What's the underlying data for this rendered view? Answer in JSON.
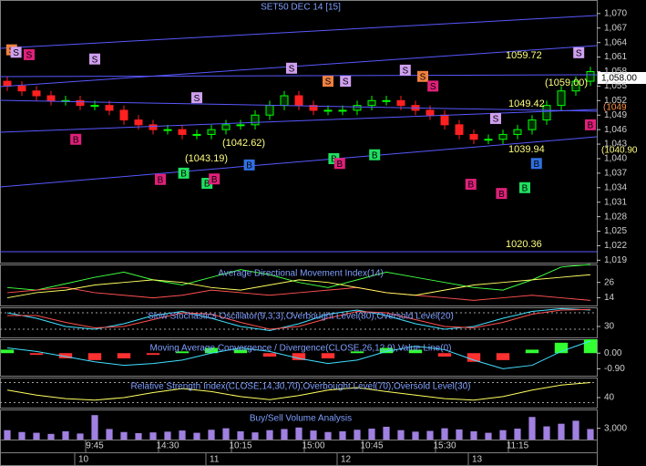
{
  "chart_data": [
    {
      "type": "candlestick",
      "title": "SET50 DEC 14 [15]",
      "categories": [
        null,
        null,
        null,
        null,
        null,
        null,
        "9:45",
        null,
        null,
        null,
        null,
        "14:30",
        null,
        null,
        null,
        null,
        "10:15",
        null,
        null,
        null,
        null,
        "15:00",
        null,
        null,
        null,
        "10:45",
        null,
        null,
        null,
        null,
        "15:30",
        null,
        null,
        null,
        null,
        "11:15",
        null,
        null,
        null,
        null,
        null
      ],
      "dates": [
        null,
        null,
        null,
        null,
        null,
        "10",
        null,
        null,
        null,
        null,
        null,
        null,
        null,
        null,
        "11",
        null,
        null,
        null,
        null,
        null,
        null,
        null,
        null,
        "12",
        null,
        null,
        null,
        null,
        null,
        null,
        null,
        null,
        "13",
        null,
        null,
        null,
        null,
        null,
        null,
        null,
        null
      ],
      "open": [
        1056,
        1055,
        1054,
        1053,
        1052,
        1052,
        1051,
        1051,
        1050,
        1048,
        1047,
        1046,
        1046,
        1045,
        1045,
        1046,
        1047,
        1047,
        1049,
        1051,
        1053,
        1051,
        1050,
        1050,
        1050,
        1051,
        1052,
        1052,
        1051,
        1050,
        1049,
        1047,
        1045,
        1044,
        1044,
        1045,
        1046,
        1048,
        1051,
        1054,
        1056
      ],
      "high": [
        1057,
        1056,
        1055,
        1054,
        1053,
        1053,
        1052,
        1052,
        1051,
        1049,
        1048,
        1047,
        1047,
        1046,
        1047,
        1048,
        1048,
        1050,
        1052,
        1054,
        1054,
        1052,
        1051,
        1051,
        1052,
        1053,
        1053,
        1053,
        1052,
        1051,
        1050,
        1048,
        1046,
        1045,
        1046,
        1047,
        1049,
        1052,
        1055,
        1057,
        1059
      ],
      "low": [
        1054,
        1053,
        1052,
        1051,
        1051,
        1050,
        1050,
        1049,
        1047,
        1046,
        1045,
        1045,
        1044,
        1044,
        1044,
        1045,
        1046,
        1046,
        1048,
        1050,
        1050,
        1049,
        1049,
        1049,
        1049,
        1050,
        1051,
        1050,
        1049,
        1048,
        1046,
        1044,
        1043,
        1043,
        1043,
        1044,
        1045,
        1047,
        1050,
        1053,
        1055
      ],
      "close": [
        1055,
        1054,
        1053,
        1052,
        1052,
        1051,
        1051,
        1050,
        1048,
        1047,
        1046,
        1046,
        1045,
        1045,
        1046,
        1047,
        1047,
        1049,
        1051,
        1053,
        1051,
        1050,
        1050,
        1050,
        1051,
        1052,
        1052,
        1051,
        1050,
        1049,
        1047,
        1045,
        1044,
        1044,
        1045,
        1046,
        1048,
        1051,
        1054,
        1056,
        1058
      ],
      "up_color": "#00ff00",
      "down_color": "#ff2020",
      "ylim": [
        1018.5,
        1072.8
      ],
      "yticks": [
        {
          "value": 1070,
          "label": "1,070"
        },
        {
          "value": 1067,
          "label": "1,067"
        },
        {
          "value": 1064,
          "label": "1,064"
        },
        {
          "value": 1061,
          "label": "1,061"
        },
        {
          "value": 1058,
          "label": "1,058"
        },
        {
          "value": 1055,
          "label": "1,055"
        },
        {
          "value": 1052,
          "label": "1,052"
        },
        {
          "value": 1049,
          "label": "1,049"
        },
        {
          "value": 1046,
          "label": "1,046"
        },
        {
          "value": 1043,
          "label": "1,043"
        },
        {
          "value": 1040,
          "label": "1,040"
        },
        {
          "value": 1037,
          "label": "1,037"
        },
        {
          "value": 1034,
          "label": "1,034"
        },
        {
          "value": 1031,
          "label": "1,031"
        },
        {
          "value": 1028,
          "label": "1,028"
        },
        {
          "value": 1025,
          "label": "1,025"
        },
        {
          "value": 1022,
          "label": "1,022"
        },
        {
          "value": 1019,
          "label": "1,019"
        }
      ],
      "annotations": [
        "1059.72",
        "(1059.00)",
        "1049.42",
        "(1042.62)",
        "(1043.19)",
        "1039.94",
        "1020.36",
        "1,058.00",
        "(1049",
        "(1040.90"
      ],
      "signals": [
        {
          "label": "S",
          "x": 0.3,
          "value": 1062.5,
          "color": "#f08040"
        },
        {
          "label": "S",
          "x": 0.6,
          "value": 1062,
          "color": "#d0a0f0"
        },
        {
          "label": "S",
          "x": 1.5,
          "value": 1061.5,
          "color": "#e0207a"
        },
        {
          "label": "S",
          "x": 6,
          "value": 1060.6,
          "color": "#d0a0f0"
        },
        {
          "label": "S",
          "x": 13,
          "value": 1052.6,
          "color": "#d0a0f0"
        },
        {
          "label": "S",
          "x": 19.5,
          "value": 1058.7,
          "color": "#d0a0f0"
        },
        {
          "label": "S",
          "x": 22,
          "value": 1056,
          "color": "#f08040"
        },
        {
          "label": "S",
          "x": 23.2,
          "value": 1056,
          "color": "#d0a0f0"
        },
        {
          "label": "S",
          "x": 27.3,
          "value": 1058.3,
          "color": "#d0a0f0"
        },
        {
          "label": "S",
          "x": 28.5,
          "value": 1057,
          "color": "#f08040"
        },
        {
          "label": "S",
          "x": 29.2,
          "value": 1055,
          "color": "#e0207a"
        },
        {
          "label": "S",
          "x": 33.5,
          "value": 1048.3,
          "color": "#d0a0f0"
        },
        {
          "label": "S",
          "x": 39.2,
          "value": 1061.9,
          "color": "#d0a0f0"
        },
        {
          "label": "B",
          "x": 4.7,
          "value": 1044,
          "color": "#e0207a"
        },
        {
          "label": "B",
          "x": 10.5,
          "value": 1035.7,
          "color": "#e0207a"
        },
        {
          "label": "B",
          "x": 12.1,
          "value": 1037,
          "color": "#20e060"
        },
        {
          "label": "B",
          "x": 13.7,
          "value": 1034.9,
          "color": "#20e060"
        },
        {
          "label": "B",
          "x": 14.2,
          "value": 1035.8,
          "color": "#e0207a"
        },
        {
          "label": "B",
          "x": 16.6,
          "value": 1038.7,
          "color": "#3070e0"
        },
        {
          "label": "B",
          "x": 22.4,
          "value": 1040,
          "color": "#20e060"
        },
        {
          "label": "B",
          "x": 22.8,
          "value": 1039,
          "color": "#e0207a"
        },
        {
          "label": "B",
          "x": 25.2,
          "value": 1040.8,
          "color": "#20e060"
        },
        {
          "label": "B",
          "x": 31.8,
          "value": 1034.7,
          "color": "#e0207a"
        },
        {
          "label": "B",
          "x": 33.9,
          "value": 1032.8,
          "color": "#e0207a"
        },
        {
          "label": "B",
          "x": 35.5,
          "value": 1034,
          "color": "#20e060"
        },
        {
          "label": "B",
          "x": 36.3,
          "value": 1039,
          "color": "#3070e0"
        },
        {
          "label": "B",
          "x": 40,
          "value": 1047,
          "color": "#e0207a"
        }
      ]
    },
    {
      "type": "line",
      "title": "Average Directional Movement Index(14)",
      "ylim": [
        8,
        40
      ],
      "yticks": [
        26,
        14
      ],
      "series": [
        {
          "color": "#40ff40",
          "values": [
            22,
            20,
            25,
            30,
            34,
            28,
            24,
            30,
            36,
            32,
            26,
            22,
            28,
            34,
            30,
            26,
            22,
            20,
            28,
            38,
            40
          ]
        },
        {
          "color": "#ff5050",
          "values": [
            18,
            20,
            22,
            18,
            16,
            14,
            16,
            20,
            18,
            16,
            18,
            20,
            22,
            18,
            16,
            14,
            12,
            14,
            16,
            14,
            12
          ]
        },
        {
          "color": "#ffff60",
          "values": [
            14,
            18,
            20,
            24,
            26,
            28,
            26,
            22,
            20,
            24,
            28,
            26,
            22,
            18,
            16,
            20,
            24,
            26,
            28,
            30,
            32
          ]
        }
      ]
    },
    {
      "type": "line",
      "title": "Slow Stochastics Oscillator(9,3,3),Overbought Level(80),Oversold Level(20)",
      "ylim": [
        -10,
        100
      ],
      "yticks": [
        30
      ],
      "levels": [
        80,
        20
      ],
      "series": [
        {
          "color": "#40e0ff",
          "values": [
            80,
            60,
            30,
            20,
            40,
            70,
            85,
            60,
            30,
            15,
            40,
            75,
            90,
            70,
            40,
            20,
            30,
            60,
            85,
            95,
            90
          ]
        },
        {
          "color": "#ff5050",
          "values": [
            70,
            70,
            45,
            25,
            30,
            55,
            80,
            75,
            45,
            20,
            30,
            60,
            85,
            80,
            55,
            30,
            25,
            45,
            75,
            90,
            92
          ]
        }
      ]
    },
    {
      "type": "bar",
      "title": "Moving Average Convergence / Divergence(CLOSE,26,12,9),Value Line(0)",
      "ylim": [
        -1.3,
        0.8
      ],
      "yticks": [
        {
          "value": 0,
          "label": "0.00"
        },
        {
          "value": -0.9,
          "label": "-0.90"
        }
      ],
      "values": [
        0.2,
        -0.1,
        -0.3,
        -0.4,
        -0.3,
        -0.1,
        0.1,
        0.3,
        0.2,
        -0.2,
        -0.4,
        -0.3,
        0.1,
        0.3,
        0.2,
        -0.2,
        -0.5,
        -0.4,
        0.2,
        0.6,
        0.8
      ],
      "pos_color": "#30ff30",
      "neg_color": "#ff3030",
      "series": [
        {
          "color": "#40e0ff",
          "values": [
            0.3,
            0.1,
            -0.2,
            -0.5,
            -0.7,
            -0.6,
            -0.4,
            0,
            0.3,
            0.1,
            -0.3,
            -0.6,
            -0.4,
            0.1,
            0.4,
            0.2,
            -0.4,
            -0.9,
            -0.7,
            0.1,
            0.7
          ]
        }
      ]
    },
    {
      "type": "line",
      "title": "Relative Strength Index(CLOSE,14,30,70),Overbought Level(70),Oversold Level(30)",
      "ylim": [
        20,
        80
      ],
      "yticks": [
        40
      ],
      "levels": [
        70,
        30
      ],
      "series": [
        {
          "color": "#ffff60",
          "values": [
            55,
            45,
            38,
            35,
            40,
            50,
            58,
            52,
            42,
            36,
            44,
            55,
            60,
            52,
            45,
            38,
            35,
            42,
            55,
            65,
            70
          ]
        }
      ]
    },
    {
      "type": "bar",
      "title": "Buy/Sell Volume Analysis",
      "ylim": [
        0,
        8000
      ],
      "yticks": [
        {
          "value": 3000,
          "label": "3,000"
        }
      ],
      "color": "#a080e0",
      "values": [
        2500,
        2000,
        1800,
        1500,
        2200,
        1600,
        6500,
        2800,
        2000,
        1700,
        1900,
        2100,
        2400,
        1800,
        2600,
        3000,
        2200,
        1900,
        2500,
        2800,
        3200,
        2400,
        2000,
        2200,
        2600,
        2900,
        3400,
        2500,
        2100,
        2300,
        3000,
        2700,
        2200,
        1800,
        2500,
        2900,
        6000,
        3500,
        4200,
        5000,
        2800
      ]
    }
  ]
}
